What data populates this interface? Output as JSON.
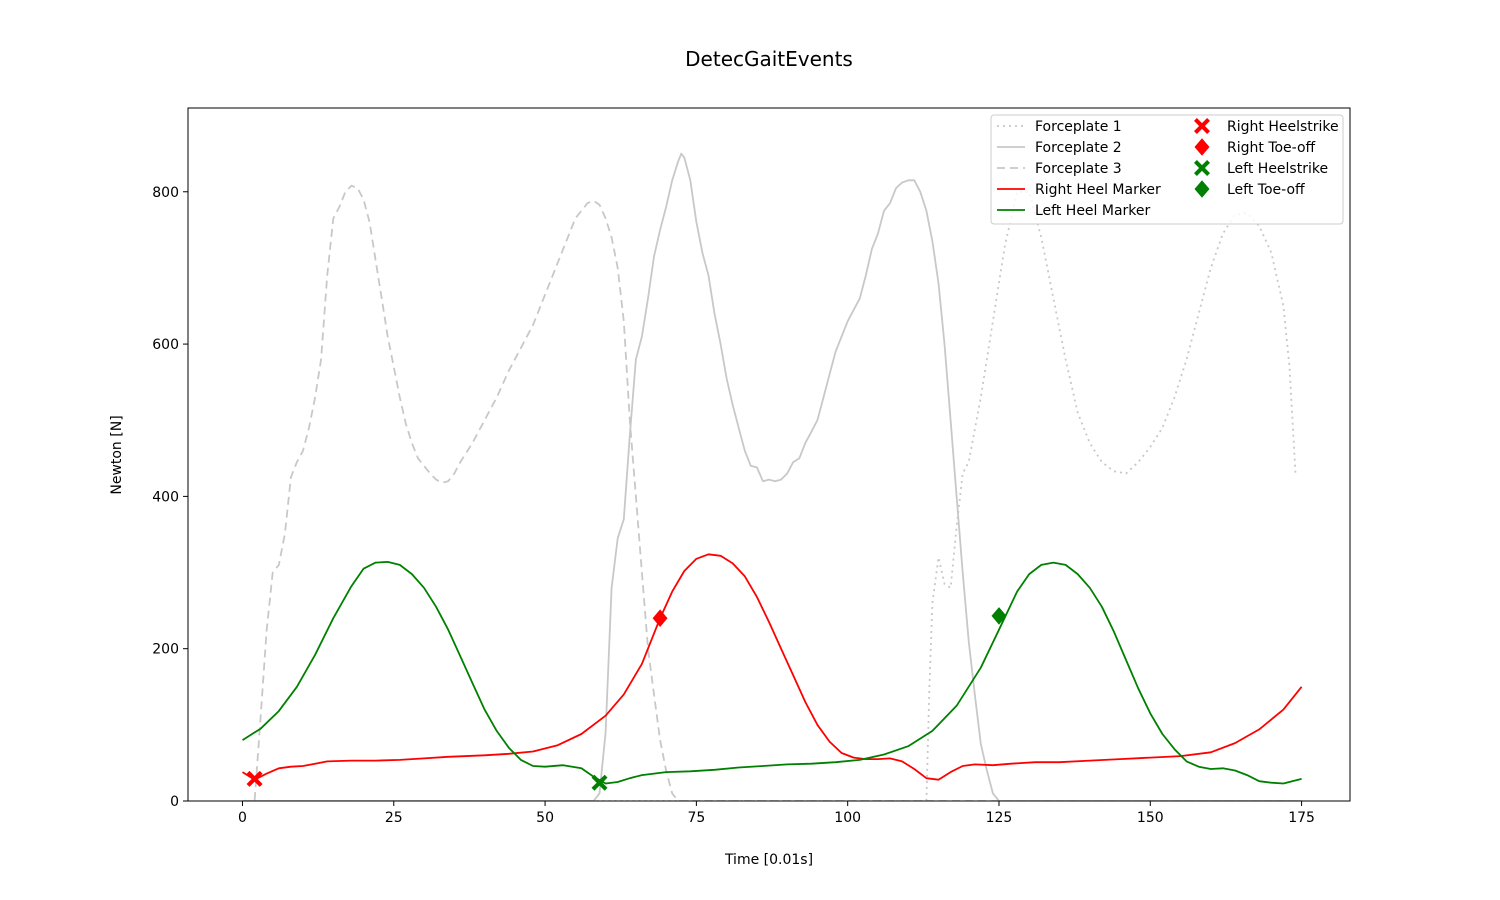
{
  "chart_data": {
    "type": "line",
    "title": "DetecGaitEvents",
    "xlabel": "Time [0.01s]",
    "ylabel": "Newton [N]",
    "xlim": [
      -9,
      183
    ],
    "ylim": [
      0,
      910
    ],
    "xticks": [
      0,
      25,
      50,
      75,
      100,
      125,
      150,
      175
    ],
    "yticks": [
      0,
      200,
      400,
      600,
      800
    ],
    "grid": false,
    "legend_position": "top-right",
    "series": [
      {
        "name": "Forceplate 1",
        "color": "#c8c8c8",
        "style": "dotted",
        "points": [
          [
            0,
            0
          ],
          [
            113,
            0
          ],
          [
            113.5,
            150
          ],
          [
            114,
            260
          ],
          [
            115,
            320
          ],
          [
            116,
            285
          ],
          [
            117,
            280
          ],
          [
            118,
            360
          ],
          [
            119,
            430
          ],
          [
            120,
            445
          ],
          [
            122,
            530
          ],
          [
            124,
            630
          ],
          [
            126,
            730
          ],
          [
            128,
            800
          ],
          [
            130,
            800
          ],
          [
            132,
            740
          ],
          [
            134,
            660
          ],
          [
            136,
            580
          ],
          [
            138,
            510
          ],
          [
            140,
            470
          ],
          [
            142,
            445
          ],
          [
            144,
            433
          ],
          [
            146,
            430
          ],
          [
            148,
            445
          ],
          [
            150,
            465
          ],
          [
            152,
            490
          ],
          [
            154,
            530
          ],
          [
            156,
            580
          ],
          [
            158,
            640
          ],
          [
            160,
            700
          ],
          [
            162,
            745
          ],
          [
            164,
            770
          ],
          [
            166,
            772
          ],
          [
            168,
            755
          ],
          [
            170,
            720
          ],
          [
            172,
            650
          ],
          [
            173,
            570
          ],
          [
            174,
            430
          ]
        ]
      },
      {
        "name": "Forceplate 2",
        "color": "#c8c8c8",
        "style": "solid",
        "points": [
          [
            0,
            0
          ],
          [
            58,
            0
          ],
          [
            59,
            10
          ],
          [
            60,
            90
          ],
          [
            61,
            280
          ],
          [
            62,
            345
          ],
          [
            63,
            370
          ],
          [
            64,
            480
          ],
          [
            65,
            580
          ],
          [
            66,
            610
          ],
          [
            67,
            660
          ],
          [
            68,
            715
          ],
          [
            69,
            750
          ],
          [
            70,
            780
          ],
          [
            71,
            815
          ],
          [
            72,
            840
          ],
          [
            72.5,
            850
          ],
          [
            73,
            845
          ],
          [
            74,
            815
          ],
          [
            75,
            760
          ],
          [
            76,
            720
          ],
          [
            77,
            690
          ],
          [
            78,
            640
          ],
          [
            79,
            600
          ],
          [
            80,
            555
          ],
          [
            81,
            520
          ],
          [
            82,
            490
          ],
          [
            83,
            460
          ],
          [
            84,
            440
          ],
          [
            85,
            438
          ],
          [
            86,
            420
          ],
          [
            87,
            422
          ],
          [
            88,
            420
          ],
          [
            89,
            422
          ],
          [
            90,
            430
          ],
          [
            91,
            445
          ],
          [
            92,
            450
          ],
          [
            93,
            470
          ],
          [
            94,
            485
          ],
          [
            95,
            500
          ],
          [
            96,
            530
          ],
          [
            97,
            560
          ],
          [
            98,
            590
          ],
          [
            99,
            610
          ],
          [
            100,
            630
          ],
          [
            101,
            645
          ],
          [
            102,
            660
          ],
          [
            103,
            690
          ],
          [
            104,
            725
          ],
          [
            105,
            745
          ],
          [
            106,
            775
          ],
          [
            107,
            785
          ],
          [
            108,
            805
          ],
          [
            109,
            812
          ],
          [
            110,
            815
          ],
          [
            111,
            815
          ],
          [
            112,
            800
          ],
          [
            113,
            775
          ],
          [
            114,
            735
          ],
          [
            115,
            680
          ],
          [
            116,
            600
          ],
          [
            117,
            500
          ],
          [
            118,
            400
          ],
          [
            119,
            300
          ],
          [
            120,
            210
          ],
          [
            121,
            140
          ],
          [
            122,
            75
          ],
          [
            123,
            40
          ],
          [
            124,
            10
          ],
          [
            125,
            0
          ],
          [
            175,
            0
          ]
        ]
      },
      {
        "name": "Forceplate 3",
        "color": "#c8c8c8",
        "style": "dashed",
        "points": [
          [
            0,
            0
          ],
          [
            2,
            0
          ],
          [
            3,
            110
          ],
          [
            4,
            225
          ],
          [
            5,
            300
          ],
          [
            6,
            310
          ],
          [
            7,
            350
          ],
          [
            8,
            425
          ],
          [
            9,
            445
          ],
          [
            10,
            460
          ],
          [
            11,
            490
          ],
          [
            12,
            530
          ],
          [
            13,
            580
          ],
          [
            14,
            690
          ],
          [
            15,
            765
          ],
          [
            16,
            780
          ],
          [
            17,
            800
          ],
          [
            18,
            808
          ],
          [
            19,
            805
          ],
          [
            20,
            790
          ],
          [
            21,
            760
          ],
          [
            22,
            710
          ],
          [
            23,
            660
          ],
          [
            24,
            610
          ],
          [
            25,
            570
          ],
          [
            26,
            530
          ],
          [
            27,
            495
          ],
          [
            28,
            470
          ],
          [
            29,
            450
          ],
          [
            30,
            440
          ],
          [
            31,
            430
          ],
          [
            32,
            422
          ],
          [
            33,
            418
          ],
          [
            34,
            420
          ],
          [
            35,
            430
          ],
          [
            36,
            445
          ],
          [
            38,
            470
          ],
          [
            40,
            500
          ],
          [
            42,
            530
          ],
          [
            44,
            565
          ],
          [
            46,
            595
          ],
          [
            48,
            625
          ],
          [
            50,
            665
          ],
          [
            52,
            705
          ],
          [
            54,
            745
          ],
          [
            55,
            765
          ],
          [
            56,
            775
          ],
          [
            57,
            785
          ],
          [
            58,
            788
          ],
          [
            59,
            783
          ],
          [
            60,
            765
          ],
          [
            61,
            740
          ],
          [
            62,
            700
          ],
          [
            63,
            630
          ],
          [
            64,
            500
          ],
          [
            65,
            400
          ],
          [
            66,
            300
          ],
          [
            67,
            200
          ],
          [
            68,
            140
          ],
          [
            69,
            80
          ],
          [
            70,
            40
          ],
          [
            71,
            10
          ],
          [
            72,
            0
          ],
          [
            175,
            0
          ]
        ]
      },
      {
        "name": "Right Heel Marker",
        "color": "#ff0000",
        "style": "solid",
        "points": [
          [
            0,
            38
          ],
          [
            2,
            28
          ],
          [
            4,
            36
          ],
          [
            6,
            43
          ],
          [
            8,
            45
          ],
          [
            10,
            46
          ],
          [
            12,
            49
          ],
          [
            14,
            52
          ],
          [
            18,
            53
          ],
          [
            22,
            53
          ],
          [
            26,
            54
          ],
          [
            30,
            56
          ],
          [
            34,
            58
          ],
          [
            40,
            60
          ],
          [
            44,
            62
          ],
          [
            48,
            65
          ],
          [
            52,
            73
          ],
          [
            56,
            88
          ],
          [
            60,
            112
          ],
          [
            63,
            140
          ],
          [
            66,
            180
          ],
          [
            69,
            240
          ],
          [
            71,
            275
          ],
          [
            73,
            302
          ],
          [
            75,
            318
          ],
          [
            77,
            324
          ],
          [
            79,
            322
          ],
          [
            81,
            312
          ],
          [
            83,
            295
          ],
          [
            85,
            268
          ],
          [
            87,
            235
          ],
          [
            89,
            200
          ],
          [
            91,
            165
          ],
          [
            93,
            130
          ],
          [
            95,
            100
          ],
          [
            97,
            78
          ],
          [
            99,
            63
          ],
          [
            101,
            57
          ],
          [
            103,
            55
          ],
          [
            105,
            55
          ],
          [
            107,
            56
          ],
          [
            109,
            52
          ],
          [
            111,
            42
          ],
          [
            113,
            30
          ],
          [
            115,
            28
          ],
          [
            117,
            38
          ],
          [
            119,
            46
          ],
          [
            121,
            48
          ],
          [
            124,
            47
          ],
          [
            127,
            49
          ],
          [
            131,
            51
          ],
          [
            135,
            51
          ],
          [
            140,
            53
          ],
          [
            145,
            55
          ],
          [
            150,
            57
          ],
          [
            155,
            59
          ],
          [
            160,
            64
          ],
          [
            164,
            76
          ],
          [
            168,
            94
          ],
          [
            172,
            120
          ],
          [
            175,
            150
          ]
        ]
      },
      {
        "name": "Left Heel Marker",
        "color": "#008000",
        "style": "solid",
        "points": [
          [
            0,
            80
          ],
          [
            3,
            95
          ],
          [
            6,
            118
          ],
          [
            9,
            150
          ],
          [
            12,
            192
          ],
          [
            15,
            240
          ],
          [
            18,
            282
          ],
          [
            20,
            305
          ],
          [
            22,
            313
          ],
          [
            24,
            314
          ],
          [
            26,
            310
          ],
          [
            28,
            298
          ],
          [
            30,
            280
          ],
          [
            32,
            255
          ],
          [
            34,
            225
          ],
          [
            36,
            190
          ],
          [
            38,
            155
          ],
          [
            40,
            120
          ],
          [
            42,
            92
          ],
          [
            44,
            70
          ],
          [
            46,
            54
          ],
          [
            48,
            46
          ],
          [
            50,
            45
          ],
          [
            53,
            47
          ],
          [
            56,
            43
          ],
          [
            58,
            32
          ],
          [
            60,
            23
          ],
          [
            62,
            25
          ],
          [
            64,
            30
          ],
          [
            66,
            34
          ],
          [
            68,
            36
          ],
          [
            70,
            38
          ],
          [
            74,
            39
          ],
          [
            78,
            41
          ],
          [
            82,
            44
          ],
          [
            86,
            46
          ],
          [
            90,
            48
          ],
          [
            94,
            49
          ],
          [
            98,
            51
          ],
          [
            102,
            54
          ],
          [
            106,
            61
          ],
          [
            110,
            72
          ],
          [
            114,
            92
          ],
          [
            118,
            125
          ],
          [
            122,
            175
          ],
          [
            125,
            225
          ],
          [
            128,
            275
          ],
          [
            130,
            298
          ],
          [
            132,
            310
          ],
          [
            134,
            313
          ],
          [
            136,
            310
          ],
          [
            138,
            298
          ],
          [
            140,
            280
          ],
          [
            142,
            255
          ],
          [
            144,
            222
          ],
          [
            146,
            185
          ],
          [
            148,
            148
          ],
          [
            150,
            115
          ],
          [
            152,
            88
          ],
          [
            154,
            68
          ],
          [
            156,
            52
          ],
          [
            158,
            45
          ],
          [
            160,
            42
          ],
          [
            162,
            43
          ],
          [
            164,
            40
          ],
          [
            166,
            34
          ],
          [
            168,
            26
          ],
          [
            170,
            24
          ],
          [
            172,
            23
          ],
          [
            175,
            29
          ]
        ]
      }
    ],
    "markers": [
      {
        "name": "Right Heelstrike",
        "color": "#ff0000",
        "shape": "x",
        "points": [
          [
            2,
            29
          ]
        ]
      },
      {
        "name": "Right Toe-off",
        "color": "#ff0000",
        "shape": "diamond",
        "points": [
          [
            69,
            240
          ]
        ]
      },
      {
        "name": "Left Heelstrike",
        "color": "#008000",
        "shape": "x",
        "points": [
          [
            59,
            24
          ]
        ]
      },
      {
        "name": "Left Toe-off",
        "color": "#008000",
        "shape": "diamond",
        "points": [
          [
            125,
            243
          ]
        ]
      }
    ]
  }
}
